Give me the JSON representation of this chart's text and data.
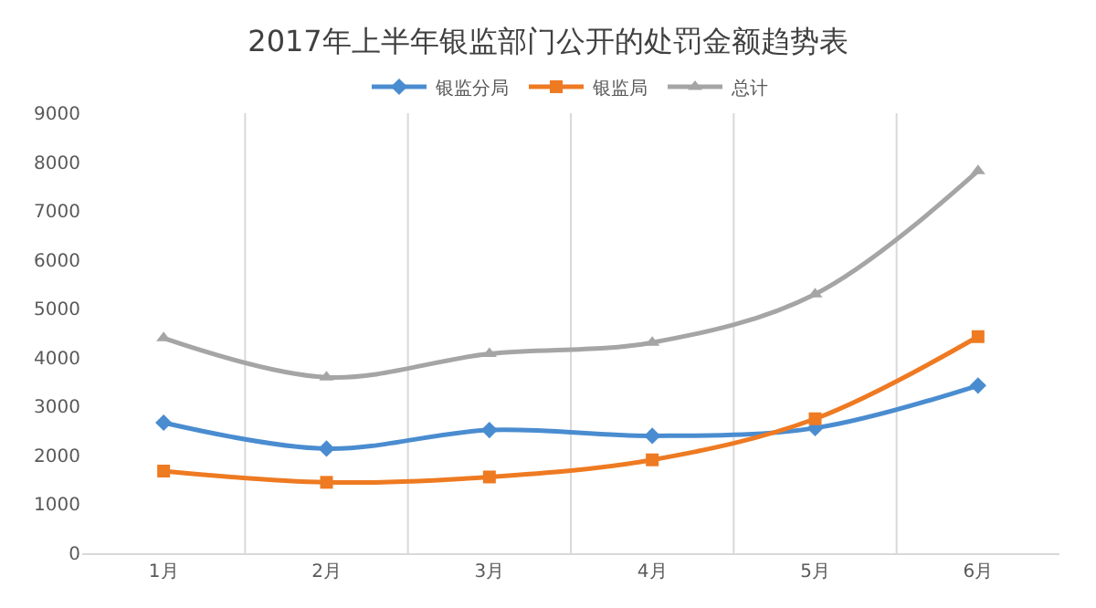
{
  "chart_data": {
    "type": "line",
    "title": "2017年上半年银监部门公开的处罚金额趋势表",
    "categories": [
      "1月",
      "2月",
      "3月",
      "4月",
      "5月",
      "6月"
    ],
    "series": [
      {
        "name": "银监分局",
        "color": "#4a8cd0",
        "marker": "diamond",
        "values": [
          2670,
          2140,
          2520,
          2400,
          2560,
          3430
        ]
      },
      {
        "name": "银监局",
        "color": "#ee7a22",
        "marker": "square",
        "values": [
          1680,
          1450,
          1560,
          1910,
          2750,
          4430
        ]
      },
      {
        "name": "总计",
        "color": "#a5a5a5",
        "marker": "triangle",
        "values": [
          4400,
          3600,
          4080,
          4310,
          5300,
          7820
        ]
      }
    ],
    "ylim": [
      0,
      9000
    ],
    "yticks": [
      0,
      1000,
      2000,
      3000,
      4000,
      5000,
      6000,
      7000,
      8000,
      9000
    ],
    "grid": "x",
    "legend": "top",
    "line_style": "solid"
  }
}
